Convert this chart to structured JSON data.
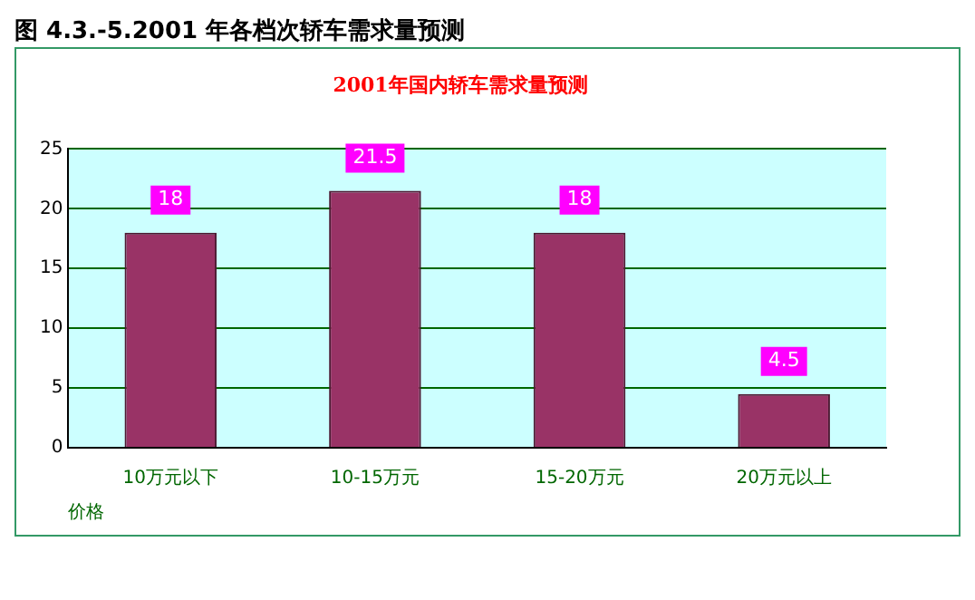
{
  "chart_data": {
    "type": "bar",
    "title": "图 4.3.-5.2001 年各档次轿车需求量预测",
    "subtitle": "2001年国内轿车需求量预测",
    "xlabel": "价格",
    "categories": [
      "10万元以下",
      "10-15万元",
      "15-20万元",
      "20万元以上"
    ],
    "values": [
      18,
      21.5,
      18,
      4.5
    ],
    "color": "#993366",
    "ylim": [
      0,
      25
    ],
    "yticks": [
      0,
      5,
      10,
      15,
      20,
      25
    ],
    "grid": "y",
    "legend": false,
    "data_labels": true
  }
}
